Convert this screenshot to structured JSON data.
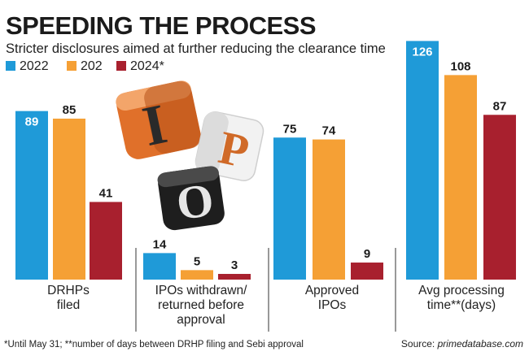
{
  "title": "SPEEDING THE PROCESS",
  "subtitle": "Stricter disclosures aimed at further reducing the clearance time",
  "footnote": "*Until May 31; **number of days between DRHP filing and Sebi approval",
  "source": {
    "label": "Source: ",
    "value": "primedatabase.com"
  },
  "colors": {
    "2022": "#1f9ad8",
    "202": "#f5a035",
    "2024*": "#a8202e",
    "divider": "#555555"
  },
  "chart_data": {
    "type": "bar",
    "title": "SPEEDING THE PROCESS",
    "subtitle": "Stricter disclosures aimed at further reducing the clearance time",
    "legend_position": "top-left",
    "grid": false,
    "categories": [
      [
        "DRHPs",
        "filed"
      ],
      [
        "IPOs withdrawn/",
        "returned before",
        "approval"
      ],
      [
        "Approved",
        "IPOs"
      ],
      [
        "Avg processing",
        "time**(days)"
      ]
    ],
    "series": [
      {
        "name": "2022",
        "color": "#1f9ad8",
        "values": [
          89,
          14,
          75,
          126
        ]
      },
      {
        "name": "202",
        "color": "#f5a035",
        "values": [
          85,
          5,
          74,
          108
        ]
      },
      {
        "name": "2024*",
        "color": "#a8202e",
        "values": [
          41,
          3,
          9,
          87
        ]
      }
    ]
  },
  "illustration": {
    "name": "ipo-dice-illustration",
    "letters": [
      "I",
      "P",
      "O"
    ]
  }
}
